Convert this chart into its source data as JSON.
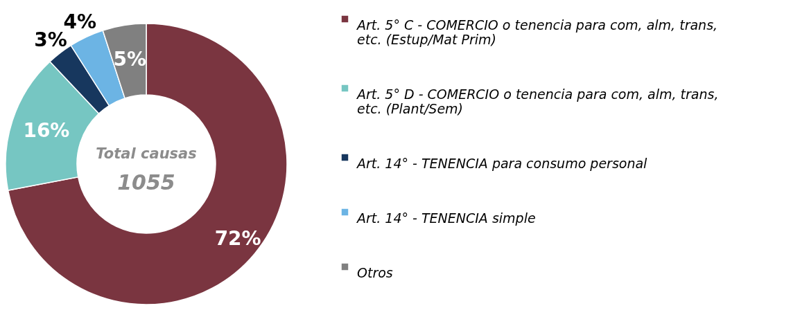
{
  "chart_data": {
    "type": "donut",
    "categories": [
      "Art. 5° C - COMERCIO o tenencia para com, alm, trans, etc. (Estup/Mat Prim)",
      "Art. 5° D - COMERCIO o tenencia para com, alm, trans, etc. (Plant/Sem)",
      "Art. 14° - TENENCIA para consumo personal",
      "Art. 14° - TENENCIA simple",
      "Otros"
    ],
    "values": [
      72,
      16,
      3,
      4,
      5
    ],
    "colors": [
      "#7a3540",
      "#76c6c2",
      "#17375e",
      "#6cb4e4",
      "#808080"
    ],
    "value_labels": [
      "72%",
      "16%",
      "3%",
      "4%",
      "5%"
    ],
    "annotations": [
      "Total causas",
      "1055"
    ],
    "legend": "right"
  }
}
